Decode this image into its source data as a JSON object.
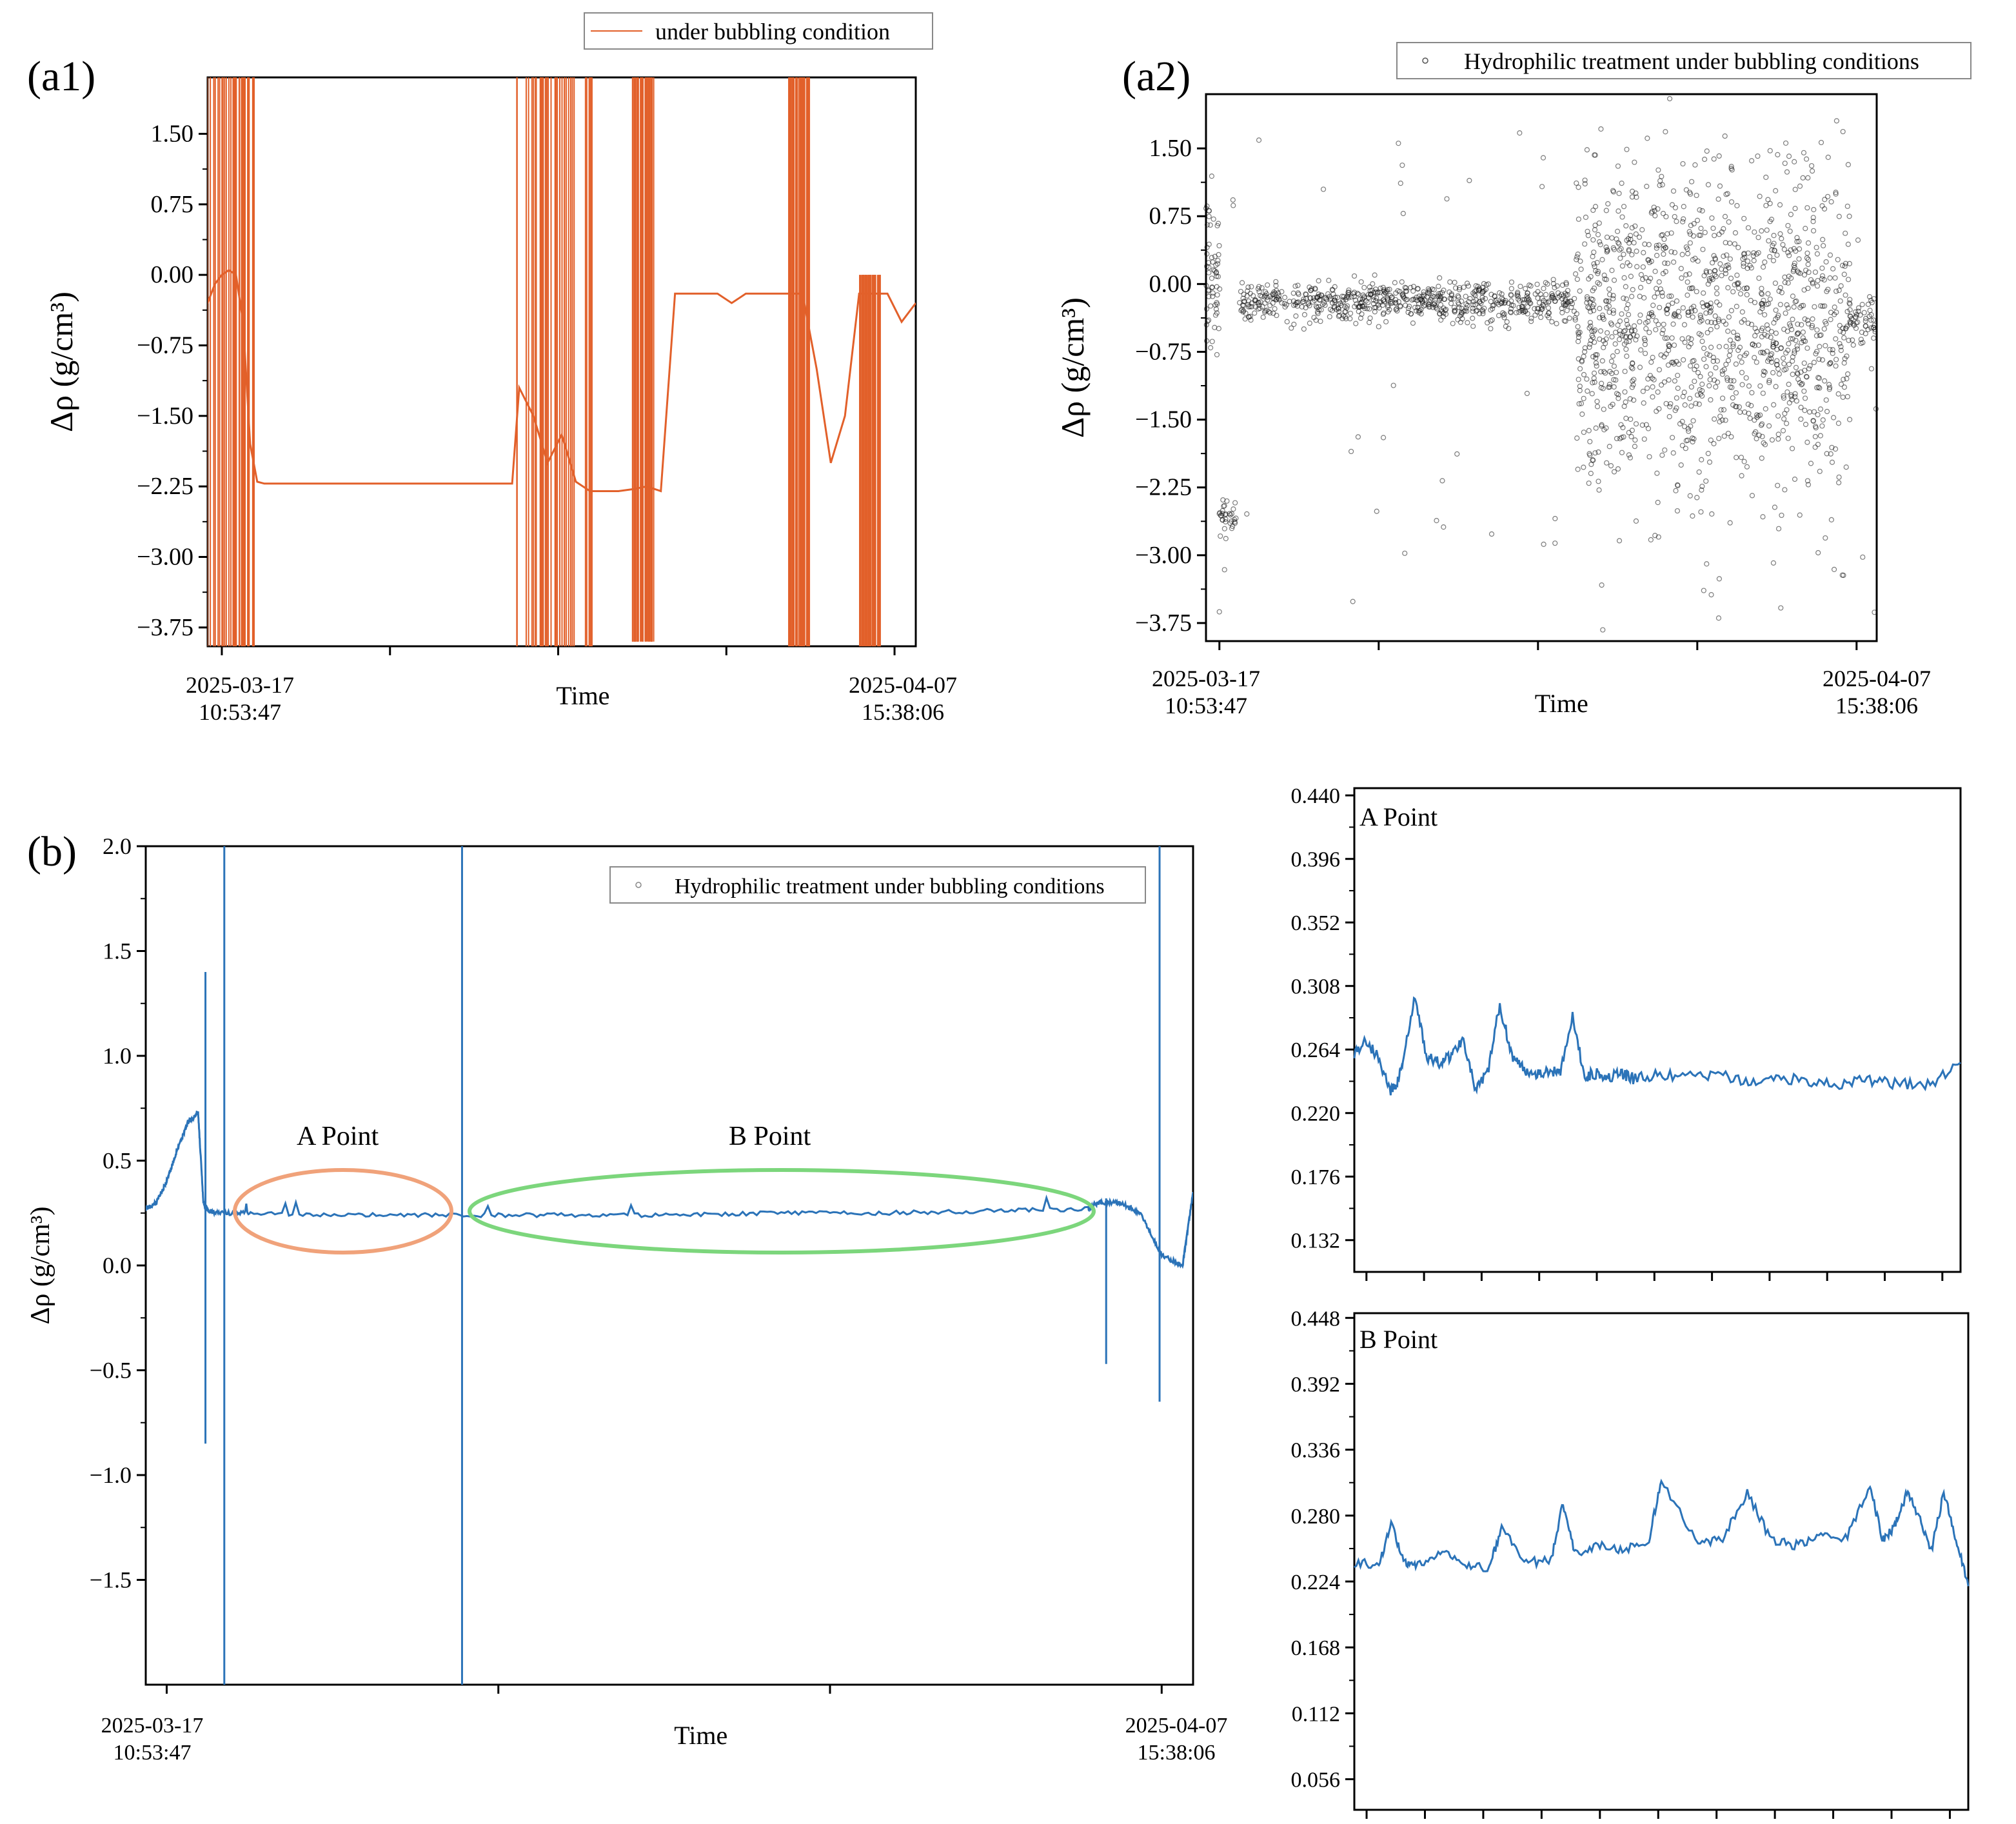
{
  "figure": {
    "panels": {
      "a1": {
        "label": "(a1)",
        "legend": "under bubbling condition",
        "ylabel": "Δρ (g/cm³)",
        "xlabel": "Time",
        "x_start": "2025-03-17\n10:53:47",
        "x_end": "2025-04-07\n15:38:06"
      },
      "a2": {
        "label": "(a2)",
        "legend": "Hydrophilic treatment under bubbling conditions",
        "ylabel": "Δρ (g/cm³)",
        "xlabel": "Time",
        "x_start": "2025-03-17\n10:53:47",
        "x_end": "2025-04-07\n15:38:06"
      },
      "b": {
        "label": "(b)",
        "legend": "Hydrophilic treatment under bubbling conditions",
        "ylabel": "Δρ (g/cm³)",
        "xlabel": "Time",
        "x_start": "2025-03-17\n10:53:47",
        "x_end": "2025-04-07\n15:38:06",
        "annotation_a": "A Point",
        "annotation_b": "B Point"
      },
      "inset_a": {
        "label": "A Point"
      },
      "inset_b": {
        "label": "B Point"
      }
    },
    "colors": {
      "orange": "#e2602a",
      "blue": "#2b73b8",
      "black": "#111111",
      "ellipse_orange": "#f0a27a",
      "ellipse_green": "#7cd67c"
    }
  },
  "chart_data": [
    {
      "id": "a1",
      "type": "line",
      "xlabel": "Time",
      "ylabel": "Δρ (g/cm³)",
      "ylim": [
        -3.95,
        2.1
      ],
      "yticks": [
        "1.50",
        "0.75",
        "0.00",
        "−0.75",
        "−1.50",
        "−2.25",
        "−3.00",
        "−3.75"
      ],
      "ytick_values": [
        1.5,
        0.75,
        0.0,
        -0.75,
        -1.5,
        -2.25,
        -3.0,
        -3.75
      ],
      "xlim": [
        0,
        1
      ],
      "legend": "top-right",
      "series": [
        {
          "name": "under bubbling condition",
          "color": "#e2602a",
          "x": [
            0.0,
            0.01,
            0.02,
            0.03,
            0.04,
            0.05,
            0.06,
            0.07,
            0.08,
            0.12,
            0.2,
            0.3,
            0.4,
            0.43,
            0.44,
            0.46,
            0.48,
            0.5,
            0.52,
            0.54,
            0.56,
            0.58,
            0.6,
            0.62,
            0.64,
            0.66,
            0.68,
            0.7,
            0.72,
            0.74,
            0.76,
            0.78,
            0.8,
            0.82,
            0.84,
            0.86,
            0.88,
            0.9,
            0.92,
            0.94,
            0.96,
            0.98,
            1.0
          ],
          "y": [
            -0.3,
            -0.1,
            0.0,
            0.05,
            0.0,
            -0.5,
            -1.8,
            -2.2,
            -2.22,
            -2.22,
            -2.22,
            -2.22,
            -2.22,
            -2.22,
            -1.2,
            -1.5,
            -2.0,
            -1.7,
            -2.2,
            -2.3,
            -2.3,
            -2.3,
            -2.28,
            -2.25,
            -2.3,
            -0.2,
            -0.2,
            -0.2,
            -0.2,
            -0.3,
            -0.2,
            -0.2,
            -0.2,
            -0.2,
            -0.2,
            -1.0,
            -2.0,
            -1.5,
            -0.2,
            -0.2,
            -0.2,
            -0.5,
            -0.3
          ]
        }
      ],
      "spikes": [
        {
          "x_range": [
            0.0,
            0.07
          ],
          "ylow": -3.95,
          "yhigh": 2.1
        },
        {
          "x_range": [
            0.43,
            0.55
          ],
          "ylow": -3.95,
          "yhigh": 2.1
        },
        {
          "x_range": [
            0.6,
            0.63
          ],
          "ylow": -3.9,
          "yhigh": 2.1
        },
        {
          "x_range": [
            0.82,
            0.85
          ],
          "ylow": -3.95,
          "yhigh": 2.1
        },
        {
          "x_range": [
            0.92,
            0.95
          ],
          "ylow": -3.95,
          "yhigh": 0.0
        }
      ]
    },
    {
      "id": "a2",
      "type": "scatter",
      "xlabel": "Time",
      "ylabel": "Δρ (g/cm³)",
      "ylim": [
        -3.95,
        2.1
      ],
      "yticks": [
        "1.50",
        "0.75",
        "0.00",
        "−0.75",
        "−1.50",
        "−2.25",
        "−3.00",
        "−3.75"
      ],
      "ytick_values": [
        1.5,
        0.75,
        0.0,
        -0.75,
        -1.5,
        -2.25,
        -3.0,
        -3.75
      ],
      "xlim": [
        0,
        1
      ],
      "legend": "top-right",
      "series": [
        {
          "name": "Hydrophilic treatment under bubbling conditions",
          "color": "#111111",
          "segments": [
            {
              "x_range": [
                0.0,
                0.02
              ],
              "center": 0.0,
              "spread": 0.6
            },
            {
              "x_range": [
                0.02,
                0.045
              ],
              "center": -2.6,
              "spread": 0.15
            },
            {
              "x_range": [
                0.05,
                0.55
              ],
              "center": -0.2,
              "spread": 0.15
            },
            {
              "x_range": [
                0.55,
                0.96
              ],
              "center": -0.4,
              "spread": 1.2
            },
            {
              "x_range": [
                0.96,
                1.0
              ],
              "center": -0.4,
              "spread": 0.2
            }
          ]
        }
      ]
    },
    {
      "id": "b",
      "type": "line",
      "xlabel": "Time",
      "ylabel": "Δρ (g/cm³)",
      "ylim": [
        -2.0,
        2.0
      ],
      "yticks": [
        "2.0",
        "1.5",
        "1.0",
        "0.5",
        "0.0",
        "−0.5",
        "−1.0",
        "−1.5"
      ],
      "ytick_values": [
        2.0,
        1.5,
        1.0,
        0.5,
        0.0,
        -0.5,
        -1.0,
        -1.5
      ],
      "xlim": [
        0,
        1
      ],
      "legend": "top-right",
      "series": [
        {
          "name": "Hydrophilic treatment under bubbling conditions",
          "color": "#2b73b8",
          "x": [
            0.0,
            0.01,
            0.02,
            0.03,
            0.04,
            0.05,
            0.055,
            0.06,
            0.07,
            0.1,
            0.2,
            0.3,
            0.4,
            0.5,
            0.6,
            0.7,
            0.8,
            0.9,
            0.91,
            0.93,
            0.95,
            0.97,
            0.99,
            1.0
          ],
          "y": [
            0.27,
            0.3,
            0.4,
            0.55,
            0.68,
            0.73,
            0.3,
            0.26,
            0.25,
            0.25,
            0.24,
            0.24,
            0.24,
            0.24,
            0.25,
            0.25,
            0.26,
            0.27,
            0.3,
            0.3,
            0.25,
            0.05,
            0.0,
            0.35
          ]
        }
      ],
      "spikes": [
        {
          "x": 0.057,
          "ylow": -0.85,
          "yhigh": 1.4
        },
        {
          "x": 0.075,
          "ylow": -2.0,
          "yhigh": 2.0
        },
        {
          "x": 0.302,
          "ylow": -2.0,
          "yhigh": 2.0
        },
        {
          "x": 0.917,
          "ylow": -0.47,
          "yhigh": 0.32
        },
        {
          "x": 0.968,
          "ylow": -0.65,
          "yhigh": 2.0
        }
      ]
    },
    {
      "id": "inset_a",
      "type": "line",
      "ylim": [
        0.11,
        0.445
      ],
      "yticks": [
        "0.440",
        "0.396",
        "0.352",
        "0.308",
        "0.264",
        "0.220",
        "0.176",
        "0.132"
      ],
      "ytick_values": [
        0.44,
        0.396,
        0.352,
        0.308,
        0.264,
        0.22,
        0.176,
        0.132
      ],
      "xlim": [
        0,
        1
      ],
      "series": [
        {
          "name": "A Point",
          "color": "#2b73b8",
          "x": [
            0.0,
            0.02,
            0.04,
            0.06,
            0.07,
            0.08,
            0.1,
            0.12,
            0.14,
            0.16,
            0.18,
            0.2,
            0.22,
            0.24,
            0.26,
            0.28,
            0.3,
            0.32,
            0.34,
            0.36,
            0.38,
            0.4,
            0.42,
            0.44,
            0.46,
            0.5,
            0.55,
            0.6,
            0.65,
            0.7,
            0.75,
            0.8,
            0.85,
            0.9,
            0.95,
            1.0
          ],
          "y": [
            0.262,
            0.27,
            0.258,
            0.235,
            0.24,
            0.255,
            0.3,
            0.258,
            0.255,
            0.26,
            0.272,
            0.235,
            0.248,
            0.295,
            0.26,
            0.25,
            0.248,
            0.248,
            0.25,
            0.286,
            0.245,
            0.248,
            0.245,
            0.247,
            0.244,
            0.246,
            0.245,
            0.247,
            0.24,
            0.245,
            0.242,
            0.24,
            0.243,
            0.24,
            0.24,
            0.255
          ]
        }
      ]
    },
    {
      "id": "inset_b",
      "type": "line",
      "ylim": [
        0.03,
        0.452
      ],
      "yticks": [
        "0.448",
        "0.392",
        "0.336",
        "0.280",
        "0.224",
        "0.168",
        "0.112",
        "0.056"
      ],
      "ytick_values": [
        0.448,
        0.392,
        0.336,
        0.28,
        0.224,
        0.168,
        0.112,
        0.056
      ],
      "xlim": [
        0,
        1
      ],
      "series": [
        {
          "name": "B Point",
          "color": "#2b73b8",
          "x": [
            0.0,
            0.04,
            0.06,
            0.08,
            0.1,
            0.14,
            0.18,
            0.22,
            0.24,
            0.28,
            0.32,
            0.34,
            0.36,
            0.4,
            0.44,
            0.48,
            0.5,
            0.56,
            0.6,
            0.64,
            0.68,
            0.72,
            0.76,
            0.8,
            0.84,
            0.86,
            0.88,
            0.9,
            0.92,
            0.94,
            0.96,
            0.98,
            1.0
          ],
          "y": [
            0.24,
            0.238,
            0.274,
            0.24,
            0.236,
            0.25,
            0.238,
            0.235,
            0.27,
            0.24,
            0.242,
            0.29,
            0.248,
            0.255,
            0.25,
            0.26,
            0.31,
            0.255,
            0.26,
            0.3,
            0.258,
            0.255,
            0.262,
            0.26,
            0.305,
            0.26,
            0.27,
            0.3,
            0.28,
            0.25,
            0.3,
            0.26,
            0.22
          ]
        }
      ]
    }
  ]
}
